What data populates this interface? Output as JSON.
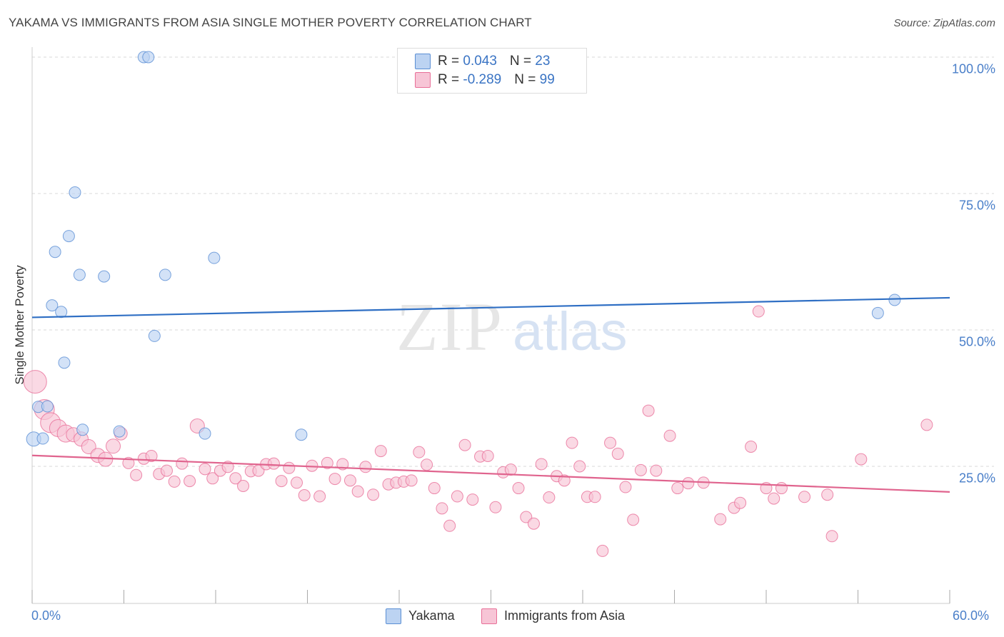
{
  "title": "YAKAMA VS IMMIGRANTS FROM ASIA SINGLE MOTHER POVERTY CORRELATION CHART",
  "source": "Source: ZipAtlas.com",
  "watermark": {
    "zip": "ZIP",
    "atlas": "atlas"
  },
  "colors": {
    "yakama": "#5b8fd4",
    "yakama_fill": "#bcd3f2",
    "asia": "#e86f98",
    "asia_fill": "#f7c5d6",
    "tick_text": "#4a7fc9"
  },
  "legend": {
    "rows": [
      {
        "r_label": "R = ",
        "r_value": "0.043",
        "n_label": "N = ",
        "n_value": "23"
      },
      {
        "r_label": "R = ",
        "r_value": "-0.289",
        "n_label": "N = ",
        "n_value": "99"
      }
    ]
  },
  "bottom_legend": {
    "yakama": "Yakama",
    "asia": "Immigrants from Asia"
  },
  "chart_data": {
    "type": "scatter",
    "title": "YAKAMA VS IMMIGRANTS FROM ASIA SINGLE MOTHER POVERTY CORRELATION CHART",
    "ylabel": "Single Mother Poverty",
    "xlabel": "",
    "xlim": [
      0,
      60
    ],
    "ylim": [
      0,
      100
    ],
    "x_tick_labels": [
      "0.0%",
      "60.0%"
    ],
    "y_tick_labels": [
      "100.0%",
      "75.0%",
      "50.0%",
      "25.0%"
    ],
    "y_ticks": [
      100,
      75,
      50,
      25
    ],
    "grid": "horizontal dashed",
    "legend_position": "top-center",
    "series": [
      {
        "name": "Yakama",
        "r": 0.043,
        "n": 23,
        "trend": {
          "x": [
            0,
            60
          ],
          "y": [
            52.3,
            55.9
          ]
        },
        "points": [
          [
            0.1,
            30.0,
            10
          ],
          [
            0.4,
            35.9,
            8
          ],
          [
            1.0,
            36.0,
            8
          ],
          [
            0.7,
            30.1,
            8
          ],
          [
            1.3,
            54.5,
            8
          ],
          [
            1.5,
            64.3,
            8
          ],
          [
            1.9,
            53.3,
            8
          ],
          [
            2.1,
            44.0,
            8
          ],
          [
            2.4,
            67.2,
            8
          ],
          [
            2.8,
            75.2,
            8
          ],
          [
            3.1,
            60.1,
            8
          ],
          [
            3.3,
            31.7,
            8
          ],
          [
            4.7,
            59.8,
            8
          ],
          [
            5.7,
            31.4,
            8
          ],
          [
            7.3,
            100.0,
            8
          ],
          [
            7.6,
            100.0,
            8
          ],
          [
            8.0,
            48.9,
            8
          ],
          [
            8.7,
            60.1,
            8
          ],
          [
            11.3,
            31.0,
            8
          ],
          [
            11.9,
            63.2,
            8
          ],
          [
            17.6,
            30.8,
            8
          ],
          [
            55.3,
            53.1,
            8
          ],
          [
            56.4,
            55.5,
            8
          ]
        ]
      },
      {
        "name": "Immigrants from Asia",
        "r": -0.289,
        "n": 99,
        "trend": {
          "x": [
            0,
            60
          ],
          "y": [
            27.0,
            20.3
          ]
        },
        "points": [
          [
            0.2,
            40.5,
            16
          ],
          [
            0.8,
            35.4,
            14
          ],
          [
            1.2,
            33.0,
            14
          ],
          [
            1.7,
            32.0,
            12
          ],
          [
            2.2,
            31.0,
            12
          ],
          [
            2.7,
            30.8,
            10
          ],
          [
            3.2,
            30.0,
            10
          ],
          [
            3.7,
            28.6,
            10
          ],
          [
            4.3,
            27.0,
            10
          ],
          [
            4.8,
            26.3,
            10
          ],
          [
            5.3,
            28.7,
            10
          ],
          [
            5.8,
            31.0,
            9
          ],
          [
            6.3,
            25.6,
            8
          ],
          [
            6.8,
            23.4,
            8
          ],
          [
            7.3,
            26.4,
            8
          ],
          [
            7.8,
            26.9,
            8
          ],
          [
            8.3,
            23.6,
            8
          ],
          [
            8.8,
            24.2,
            8
          ],
          [
            9.3,
            22.2,
            8
          ],
          [
            9.8,
            25.5,
            8
          ],
          [
            10.3,
            22.3,
            8
          ],
          [
            10.8,
            32.4,
            10
          ],
          [
            11.3,
            24.5,
            8
          ],
          [
            11.8,
            22.8,
            8
          ],
          [
            12.3,
            24.2,
            8
          ],
          [
            12.8,
            24.9,
            8
          ],
          [
            13.3,
            22.8,
            8
          ],
          [
            13.8,
            21.4,
            8
          ],
          [
            14.3,
            24.1,
            8
          ],
          [
            14.8,
            24.2,
            8
          ],
          [
            15.3,
            25.4,
            8
          ],
          [
            15.8,
            25.5,
            8
          ],
          [
            16.3,
            22.3,
            8
          ],
          [
            16.8,
            24.7,
            8
          ],
          [
            17.3,
            22.0,
            8
          ],
          [
            17.8,
            19.7,
            8
          ],
          [
            18.3,
            25.1,
            8
          ],
          [
            18.8,
            19.5,
            8
          ],
          [
            19.3,
            25.6,
            8
          ],
          [
            19.8,
            22.7,
            8
          ],
          [
            20.3,
            25.4,
            8
          ],
          [
            20.8,
            22.4,
            8
          ],
          [
            21.3,
            20.4,
            8
          ],
          [
            21.8,
            24.9,
            8
          ],
          [
            22.3,
            19.8,
            8
          ],
          [
            22.8,
            27.8,
            8
          ],
          [
            23.3,
            21.7,
            8
          ],
          [
            23.8,
            22.0,
            8
          ],
          [
            24.3,
            22.2,
            8
          ],
          [
            24.8,
            22.4,
            8
          ],
          [
            25.3,
            27.6,
            8
          ],
          [
            25.8,
            25.3,
            8
          ],
          [
            26.3,
            21.0,
            8
          ],
          [
            26.8,
            17.3,
            8
          ],
          [
            27.3,
            14.1,
            8
          ],
          [
            27.8,
            19.5,
            8
          ],
          [
            28.3,
            28.9,
            8
          ],
          [
            28.8,
            18.9,
            8
          ],
          [
            29.3,
            26.8,
            8
          ],
          [
            29.8,
            26.9,
            8
          ],
          [
            30.3,
            17.5,
            8
          ],
          [
            30.8,
            23.9,
            8
          ],
          [
            31.3,
            24.4,
            8
          ],
          [
            31.8,
            21.0,
            8
          ],
          [
            32.3,
            15.7,
            8
          ],
          [
            32.8,
            14.5,
            8
          ],
          [
            33.3,
            25.4,
            8
          ],
          [
            33.8,
            19.3,
            8
          ],
          [
            34.3,
            23.2,
            8
          ],
          [
            34.8,
            22.4,
            8
          ],
          [
            35.3,
            29.3,
            8
          ],
          [
            35.8,
            25.0,
            8
          ],
          [
            36.3,
            19.4,
            8
          ],
          [
            36.8,
            19.4,
            8
          ],
          [
            37.3,
            9.5,
            8
          ],
          [
            37.8,
            29.3,
            8
          ],
          [
            38.3,
            27.3,
            8
          ],
          [
            38.8,
            21.2,
            8
          ],
          [
            39.3,
            15.2,
            8
          ],
          [
            39.8,
            24.3,
            8
          ],
          [
            40.3,
            35.2,
            8
          ],
          [
            40.8,
            24.2,
            8
          ],
          [
            41.7,
            30.6,
            8
          ],
          [
            42.2,
            21.0,
            8
          ],
          [
            42.9,
            21.9,
            8
          ],
          [
            43.9,
            22.0,
            8
          ],
          [
            45.0,
            15.3,
            8
          ],
          [
            45.9,
            17.4,
            8
          ],
          [
            46.3,
            18.3,
            8
          ],
          [
            47.0,
            28.6,
            8
          ],
          [
            47.5,
            53.4,
            8
          ],
          [
            48.0,
            21.0,
            8
          ],
          [
            48.5,
            19.1,
            8
          ],
          [
            49.0,
            21.0,
            8
          ],
          [
            50.5,
            19.4,
            8
          ],
          [
            52.0,
            19.8,
            8
          ],
          [
            52.3,
            12.2,
            8
          ],
          [
            54.2,
            26.3,
            8
          ],
          [
            58.5,
            32.6,
            8
          ]
        ]
      }
    ]
  }
}
